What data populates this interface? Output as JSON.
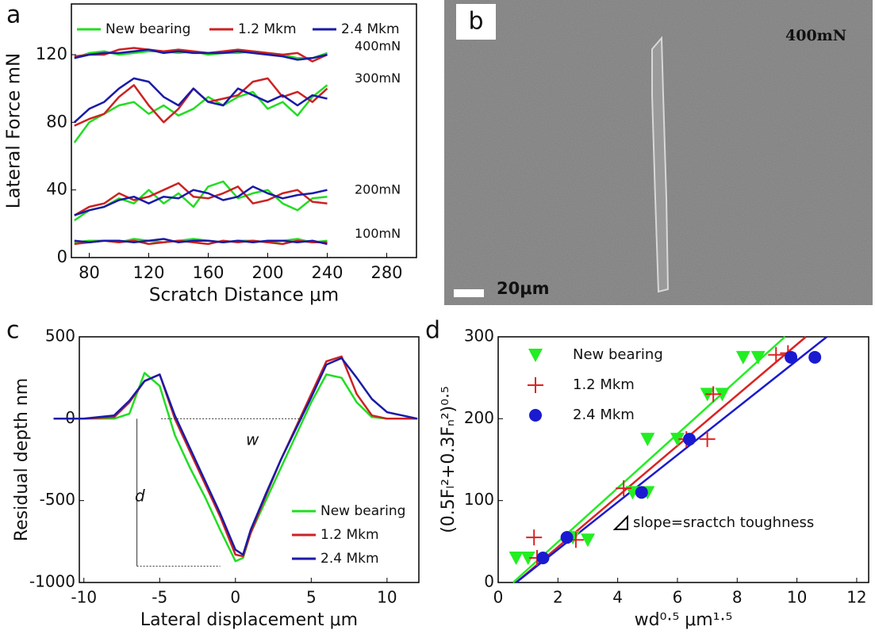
{
  "chart_data": [
    {
      "type": "line",
      "panel": "a",
      "x": [
        70,
        80,
        90,
        100,
        110,
        120,
        130,
        140,
        150,
        160,
        170,
        180,
        190,
        200,
        210,
        220,
        230,
        240
      ],
      "xlim": [
        68,
        300
      ],
      "xticks": [
        80,
        120,
        160,
        200,
        240,
        280
      ],
      "ylim": [
        0,
        150
      ],
      "yticks": [
        0,
        40,
        80,
        120
      ],
      "xlabel": "Scratch Distance μm",
      "ylabel": "Lateral Force mN",
      "annotations": [
        "400mN",
        "300mN",
        "200mN",
        "100mN"
      ],
      "series": [
        {
          "name": "New bearing",
          "color": "#22dd22",
          "curves": [
            [
              118,
              121,
              122,
              120,
              121,
              122,
              122,
              121,
              122,
              120,
              121,
              121,
              122,
              121,
              120,
              118,
              118,
              121
            ],
            [
              68,
              80,
              85,
              90,
              92,
              85,
              90,
              84,
              88,
              95,
              90,
              95,
              98,
              88,
              92,
              84,
              95,
              102
            ],
            [
              22,
              28,
              30,
              35,
              32,
              40,
              32,
              38,
              30,
              42,
              45,
              35,
              38,
              40,
              32,
              28,
              35,
              36
            ],
            [
              9,
              10,
              10,
              9,
              11,
              10,
              9,
              10,
              11,
              10,
              9,
              10,
              10,
              9,
              10,
              11,
              9,
              10
            ]
          ]
        },
        {
          "name": "1.2 Mkm",
          "color": "#cc2222",
          "curves": [
            [
              119,
              120,
              120,
              123,
              124,
              123,
              122,
              123,
              122,
              121,
              122,
              123,
              122,
              121,
              120,
              121,
              116,
              120
            ],
            [
              78,
              82,
              85,
              95,
              102,
              90,
              80,
              88,
              100,
              92,
              94,
              96,
              104,
              106,
              95,
              98,
              92,
              100
            ],
            [
              25,
              30,
              32,
              38,
              34,
              36,
              40,
              44,
              36,
              35,
              38,
              42,
              32,
              34,
              38,
              40,
              33,
              32
            ],
            [
              8,
              9,
              10,
              9,
              10,
              8,
              9,
              10,
              9,
              8,
              10,
              9,
              10,
              9,
              8,
              10,
              9,
              9
            ]
          ]
        },
        {
          "name": "2.4 Mkm",
          "color": "#1a1aa8",
          "curves": [
            [
              118,
              120,
              121,
              121,
              122,
              123,
              121,
              122,
              121,
              121,
              121,
              122,
              121,
              120,
              119,
              117,
              118,
              120
            ],
            [
              80,
              88,
              92,
              100,
              106,
              104,
              95,
              90,
              100,
              92,
              90,
              100,
              96,
              92,
              96,
              90,
              96,
              94
            ],
            [
              25,
              28,
              30,
              34,
              36,
              32,
              36,
              35,
              40,
              38,
              34,
              36,
              42,
              38,
              35,
              37,
              38,
              40
            ],
            [
              10,
              9,
              10,
              10,
              9,
              10,
              11,
              9,
              10,
              10,
              9,
              10,
              9,
              10,
              10,
              9,
              10,
              8
            ]
          ]
        }
      ]
    },
    {
      "type": "image",
      "panel": "b",
      "label": "400mN",
      "scale": "20μm"
    },
    {
      "type": "line",
      "panel": "c",
      "x": [
        -12,
        -10,
        -8,
        -7,
        -6,
        -5,
        -4,
        -3,
        -2,
        -1,
        0,
        0.5,
        1,
        2,
        3,
        4,
        5,
        6,
        7,
        8,
        9,
        10,
        12
      ],
      "xlim": [
        -10.3,
        12.1
      ],
      "xticks": [
        -10,
        -5,
        0,
        5,
        10
      ],
      "ylim": [
        -1000,
        500
      ],
      "yticks": [
        -1000,
        -500,
        0,
        500
      ],
      "xlabel": "Lateral displacement μm",
      "ylabel": "Residual depth nm",
      "annotations": [
        "w",
        "d"
      ],
      "series": [
        {
          "name": "New bearing",
          "color": "#22dd22",
          "values": [
            0,
            0,
            0,
            30,
            280,
            200,
            -100,
            -300,
            -480,
            -680,
            -870,
            -850,
            -700,
            -500,
            -300,
            -100,
            100,
            270,
            250,
            100,
            10,
            0,
            0
          ]
        },
        {
          "name": "1.2 Mkm",
          "color": "#cc2222",
          "values": [
            0,
            0,
            10,
            100,
            230,
            270,
            0,
            -200,
            -400,
            -600,
            -830,
            -840,
            -700,
            -470,
            -250,
            -50,
            150,
            350,
            380,
            150,
            20,
            0,
            0
          ]
        },
        {
          "name": "2.4 Mkm",
          "color": "#1a1aa8",
          "values": [
            0,
            0,
            20,
            110,
            230,
            270,
            20,
            -180,
            -380,
            -580,
            -800,
            -830,
            -680,
            -460,
            -250,
            -60,
            130,
            330,
            370,
            250,
            120,
            40,
            0
          ]
        }
      ]
    },
    {
      "type": "scatter",
      "panel": "d",
      "xlim": [
        0,
        12.4
      ],
      "xticks": [
        0,
        2,
        4,
        6,
        8,
        10,
        12
      ],
      "ylim": [
        0,
        300
      ],
      "yticks": [
        0,
        100,
        200,
        300
      ],
      "xlabel": "wd⁰·⁵ μm¹·⁵",
      "ylabel": "(0.5Fₗ²+0.3Fₙ²)⁰·⁵",
      "annotation": "slope=sractch toughness",
      "series": [
        {
          "name": "New bearing",
          "color": "#22ee22",
          "marker": "triangle",
          "x": [
            0.6,
            1.0,
            2.5,
            3.0,
            4.5,
            5.0,
            5.0,
            6.0,
            7.0,
            7.5,
            8.2,
            8.7
          ],
          "y": [
            30,
            30,
            55,
            52,
            110,
            110,
            175,
            175,
            230,
            230,
            275,
            275
          ],
          "fit": {
            "x": [
              0.5,
              9.6
            ],
            "y": [
              0,
              300
            ]
          }
        },
        {
          "name": "1.2 Mkm",
          "color": "#dd2222",
          "marker": "plus",
          "x": [
            1.2,
            1.3,
            2.6,
            4.2,
            6.3,
            7.0,
            7.2,
            9.3,
            9.7
          ],
          "y": [
            55,
            30,
            52,
            115,
            175,
            175,
            230,
            278,
            280
          ],
          "fit": {
            "x": [
              0.6,
              10.3
            ],
            "y": [
              0,
              300
            ]
          }
        },
        {
          "name": "2.4 Mkm",
          "color": "#1a1ad0",
          "marker": "circle",
          "x": [
            1.5,
            2.3,
            4.8,
            6.4,
            9.8,
            10.6
          ],
          "y": [
            30,
            55,
            110,
            175,
            275,
            275
          ],
          "fit": {
            "x": [
              0.6,
              11.0
            ],
            "y": [
              0,
              300
            ]
          }
        }
      ]
    }
  ]
}
